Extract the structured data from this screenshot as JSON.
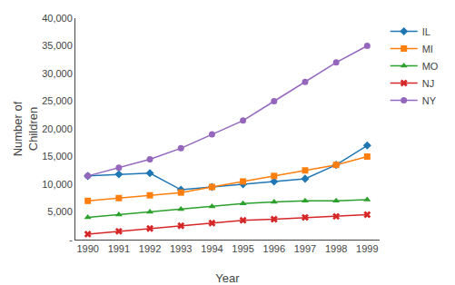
{
  "chart_data": {
    "type": "line",
    "xlabel": "Year",
    "ylabel": "Number of\nChildren",
    "x": [
      1990,
      1991,
      1992,
      1993,
      1994,
      1995,
      1996,
      1997,
      1998,
      1999
    ],
    "series": [
      {
        "name": "IL",
        "marker": "diamond",
        "values": [
          11500,
          11800,
          12000,
          9000,
          9500,
          10000,
          10500,
          11000,
          13500,
          17000
        ]
      },
      {
        "name": "MI",
        "marker": "square",
        "values": [
          7000,
          7500,
          8000,
          8500,
          9500,
          10500,
          11500,
          12500,
          13500,
          15000
        ]
      },
      {
        "name": "MO",
        "marker": "triangle-up",
        "values": [
          4000,
          4500,
          5000,
          5500,
          6000,
          6500,
          6800,
          7000,
          7000,
          7200
        ]
      },
      {
        "name": "NJ",
        "marker": "x",
        "values": [
          1000,
          1500,
          2000,
          2500,
          3000,
          3500,
          3700,
          4000,
          4200,
          4500
        ]
      },
      {
        "name": "NY",
        "marker": "circle",
        "values": [
          11500,
          13000,
          14500,
          16500,
          19000,
          21500,
          25000,
          28500,
          32000,
          35000
        ]
      }
    ],
    "xlim": [
      1989.6,
      1999.4
    ],
    "xticks": [
      1990,
      1991,
      1992,
      1993,
      1994,
      1995,
      1996,
      1997,
      1998,
      1999
    ],
    "ylim": [
      0,
      40000
    ],
    "yticks": [
      {
        "value": 0,
        "label": "-"
      },
      {
        "value": 5000,
        "label": "5,000"
      },
      {
        "value": 10000,
        "label": "10,000"
      },
      {
        "value": 15000,
        "label": "15,000"
      },
      {
        "value": 20000,
        "label": "20,000"
      },
      {
        "value": 25000,
        "label": "25,000"
      },
      {
        "value": 30000,
        "label": "30,000"
      },
      {
        "value": 35000,
        "label": "35,000"
      },
      {
        "value": 40000,
        "label": "40,000"
      }
    ],
    "grid": false,
    "legend": "right"
  }
}
